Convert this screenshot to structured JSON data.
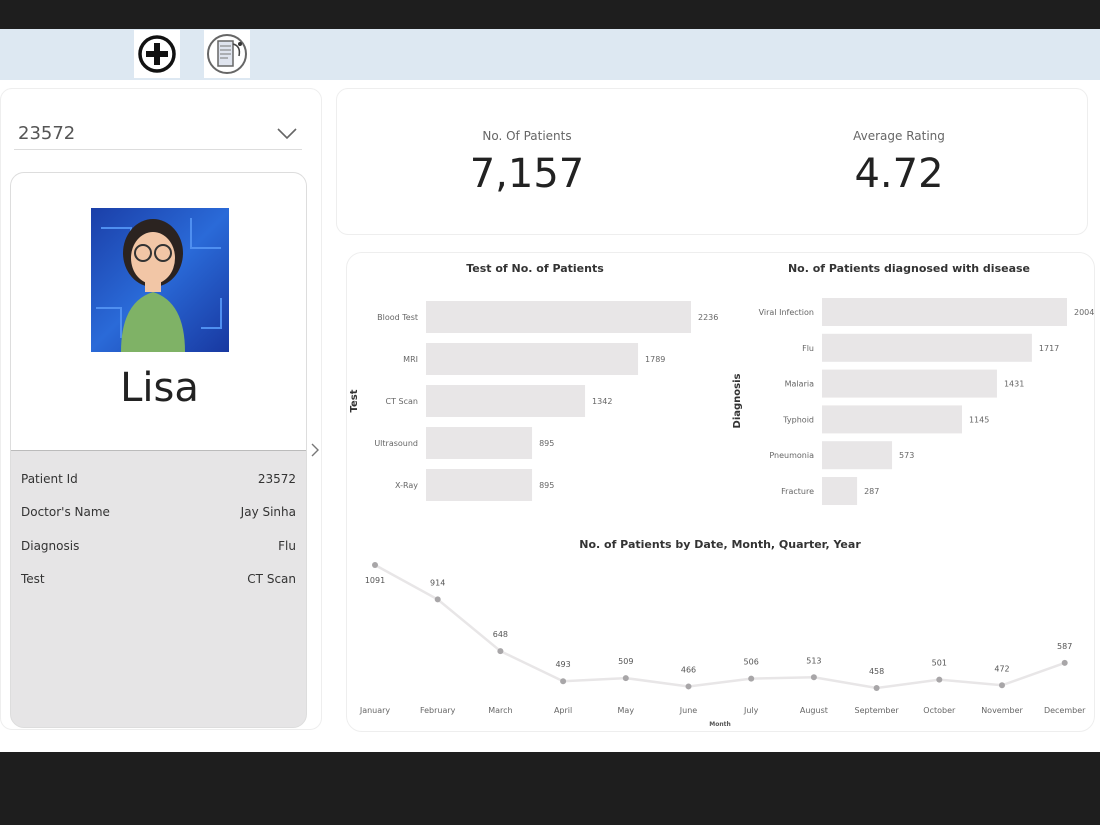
{
  "toolbar": {
    "icons": [
      "add-circle-icon",
      "medical-report-icon"
    ]
  },
  "filter": {
    "selected": "23572"
  },
  "patient": {
    "name": "Lisa",
    "avatar": "avatar-image",
    "details": [
      {
        "label": "Patient Id",
        "value": "23572"
      },
      {
        "label": "Doctor's Name",
        "value": "Jay Sinha"
      },
      {
        "label": "Diagnosis",
        "value": "Flu"
      },
      {
        "label": "Test",
        "value": "CT Scan"
      }
    ]
  },
  "kpis": [
    {
      "label": "No. Of Patients",
      "value": "7,157"
    },
    {
      "label": "Average Rating",
      "value": "4.72"
    }
  ],
  "colors": {
    "bar": "#e8e6e7",
    "line": "#e8e6e7",
    "marker": "#a8a6a8"
  },
  "chart_data": [
    {
      "type": "bar",
      "orientation": "horizontal",
      "title": "Test of No. of Patients",
      "ylabel": "Test",
      "categories": [
        "Blood Test",
        "MRI",
        "CT Scan",
        "Ultrasound",
        "X-Ray"
      ],
      "values": [
        2236,
        1789,
        1342,
        895,
        895
      ]
    },
    {
      "type": "bar",
      "orientation": "horizontal",
      "title": "No. of Patients diagnosed with disease",
      "ylabel": "Diagnosis",
      "categories": [
        "Viral Infection",
        "Flu",
        "Malaria",
        "Typhoid",
        "Pneumonia",
        "Fracture"
      ],
      "values": [
        2004,
        1717,
        1431,
        1145,
        573,
        287
      ]
    },
    {
      "type": "line",
      "title": "No. of Patients by Date, Month, Quarter, Year",
      "xlabel": "Month",
      "categories": [
        "January",
        "February",
        "March",
        "April",
        "May",
        "June",
        "July",
        "August",
        "September",
        "October",
        "November",
        "December"
      ],
      "values": [
        1091,
        914,
        648,
        493,
        509,
        466,
        506,
        513,
        458,
        501,
        472,
        587
      ]
    }
  ]
}
